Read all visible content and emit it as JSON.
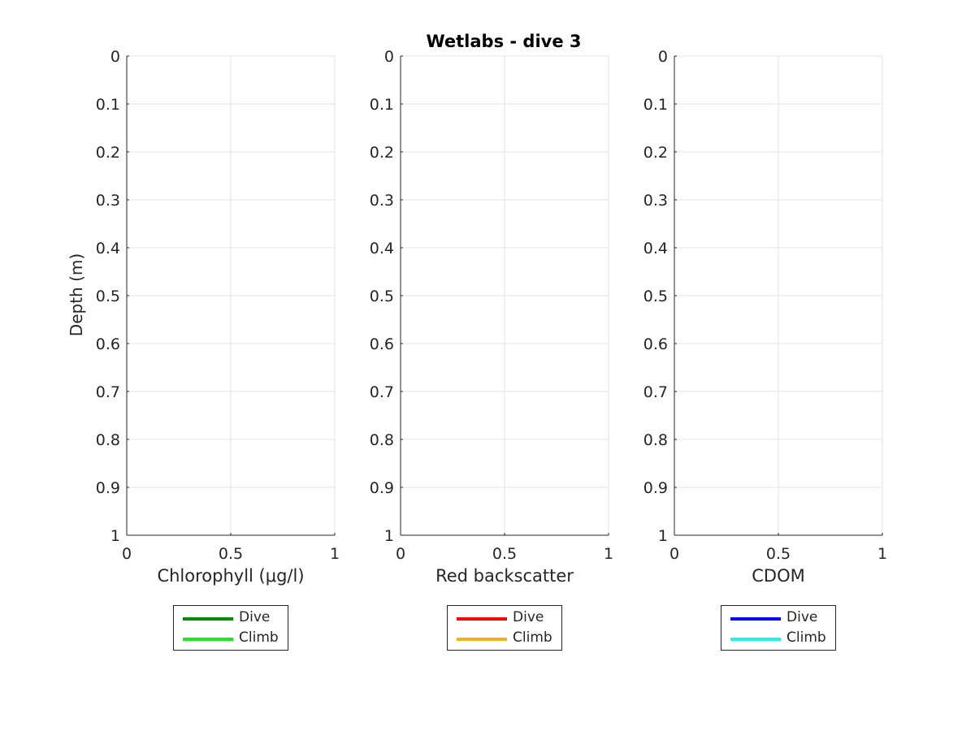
{
  "title": "Wetlabs - dive 3",
  "ylabel": "Depth (m)",
  "chart_data": [
    {
      "type": "line",
      "title": "Wetlabs - dive 3",
      "xlabel": "Chlorophyll (μg/l)",
      "ylabel": "Depth (m)",
      "xlim": [
        0,
        1
      ],
      "ylim": [
        0,
        1
      ],
      "y_reversed": true,
      "xticks": [
        "0",
        "0.5",
        "1"
      ],
      "yticks": [
        "0",
        "0.1",
        "0.2",
        "0.3",
        "0.4",
        "0.5",
        "0.6",
        "0.7",
        "0.8",
        "0.9",
        "1"
      ],
      "grid": true,
      "legend_placement": "below",
      "series": [
        {
          "name": "Dive",
          "color": "#008c00",
          "values": []
        },
        {
          "name": "Climb",
          "color": "#1fe81f",
          "values": []
        }
      ]
    },
    {
      "type": "line",
      "xlabel": "Red backscatter",
      "xlim": [
        0,
        1
      ],
      "ylim": [
        0,
        1
      ],
      "y_reversed": true,
      "xticks": [
        "0",
        "0.5",
        "1"
      ],
      "yticks": [
        "0",
        "0.1",
        "0.2",
        "0.3",
        "0.4",
        "0.5",
        "0.6",
        "0.7",
        "0.8",
        "0.9",
        "1"
      ],
      "grid": true,
      "legend_placement": "below",
      "series": [
        {
          "name": "Dive",
          "color": "#ff0000",
          "values": []
        },
        {
          "name": "Climb",
          "color": "#f2b21a",
          "values": []
        }
      ]
    },
    {
      "type": "line",
      "xlabel": "CDOM",
      "xlim": [
        0,
        1
      ],
      "ylim": [
        0,
        1
      ],
      "y_reversed": true,
      "xticks": [
        "0",
        "0.5",
        "1"
      ],
      "yticks": [
        "0",
        "0.1",
        "0.2",
        "0.3",
        "0.4",
        "0.5",
        "0.6",
        "0.7",
        "0.8",
        "0.9",
        "1"
      ],
      "grid": true,
      "legend_placement": "below",
      "series": [
        {
          "name": "Dive",
          "color": "#0000ff",
          "values": []
        },
        {
          "name": "Climb",
          "color": "#1ff2f2",
          "values": []
        }
      ]
    }
  ]
}
